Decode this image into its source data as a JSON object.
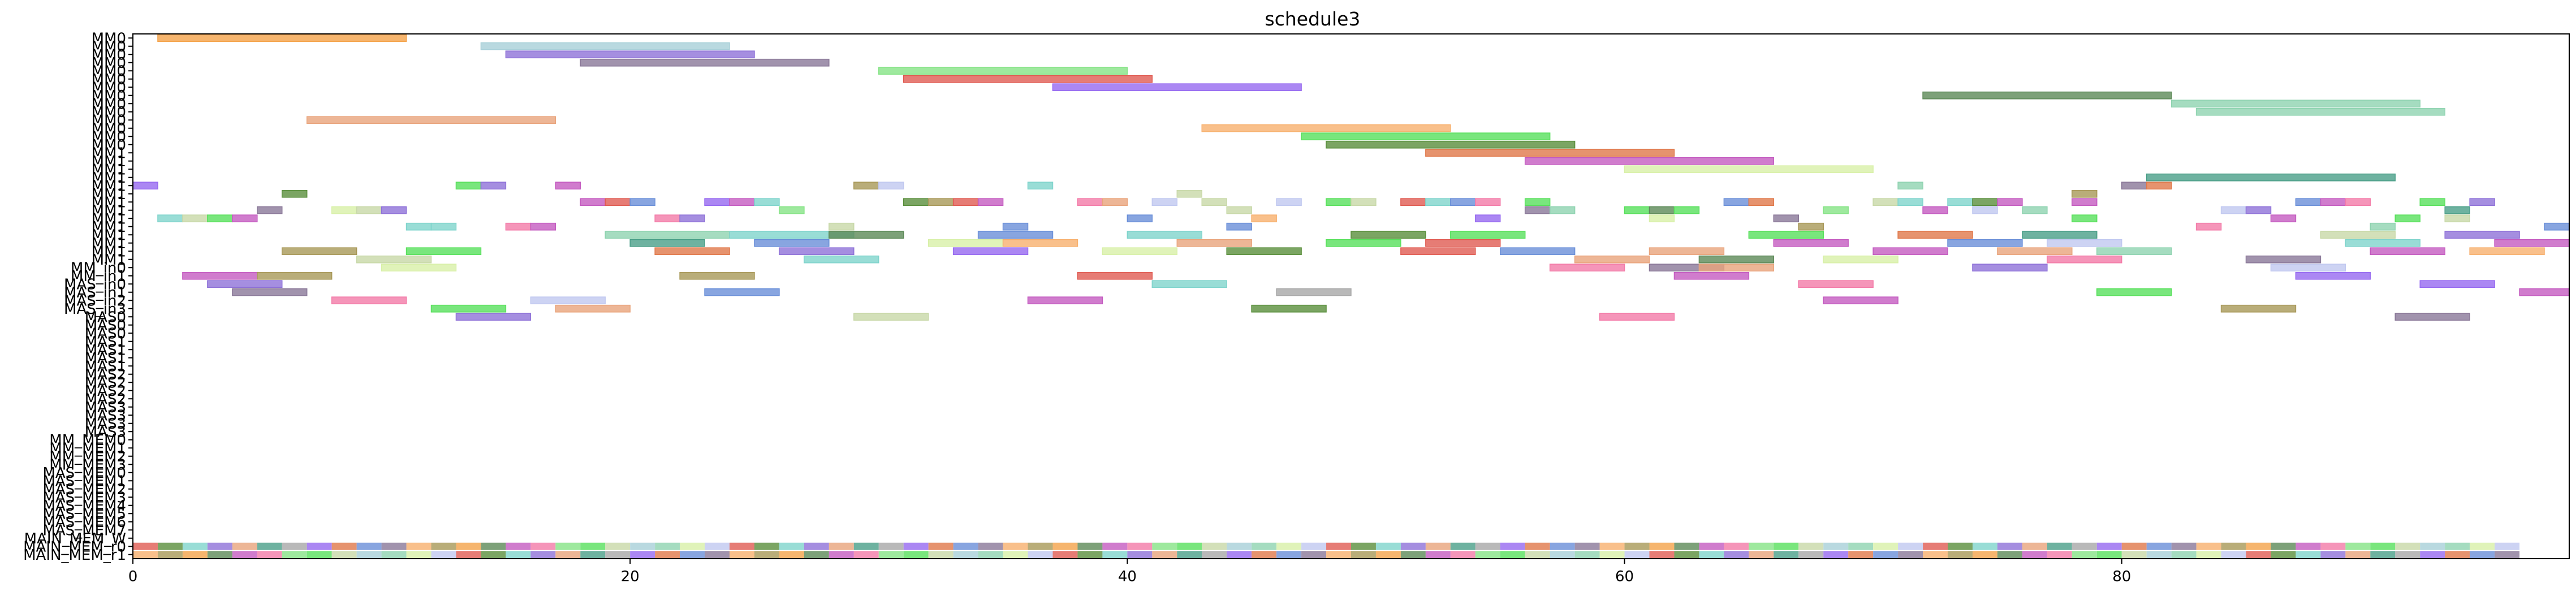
{
  "chart_data": {
    "type": "gantt",
    "title": "schedule3",
    "xlim": [
      0,
      98
    ],
    "x_ticks": [
      "0",
      "20",
      "40",
      "60",
      "80"
    ],
    "x_tick_values": [
      0,
      20,
      40,
      60,
      80
    ],
    "rows": [
      "MM0",
      "MM0",
      "MM0",
      "MM0",
      "MM0",
      "MM0",
      "MM0",
      "MM0",
      "MM0",
      "MM0",
      "MM0",
      "MM0",
      "MM0",
      "MM0",
      "MM1",
      "MM1",
      "MM1",
      "MM1",
      "MM1",
      "MM1",
      "MM1",
      "MM1",
      "MM1",
      "MM1",
      "MM1",
      "MM1",
      "MM1",
      "MM1",
      "MM_in0",
      "MM_in1",
      "MAS_in0",
      "MAS_in1",
      "MAS_in2",
      "MAS_in3",
      "MAS0",
      "MAS0",
      "MAS0",
      "MAS1",
      "MAS1",
      "MAS1",
      "MAS1",
      "MAS2",
      "MAS2",
      "MAS2",
      "MAS2",
      "MAS3",
      "MAS3",
      "MAS3",
      "MAS3",
      "MM_MEM0",
      "MM_MEM1",
      "MM_MEM2",
      "MM_MEM3",
      "MAS_MEM0",
      "MAS_MEM1",
      "MAS_MEM2",
      "MAS_MEM3",
      "MAS_MEM4",
      "MAS_MEM5",
      "MAS_MEM6",
      "MAS_MEM7",
      "MAIN_MEM_W",
      "MAIN_MEM_r0",
      "MAIN_MEM_r1"
    ],
    "palette": [
      "#f4a34a",
      "#a8d0d8",
      "#8f72d8",
      "#8a7898",
      "#86e386",
      "#e05b52",
      "#9669f0",
      "#5d8a58",
      "#8fd3b0",
      "#e9a47c",
      "#f7b06e",
      "#58e05c",
      "#5a8f3c",
      "#e0784a",
      "#c45bc0",
      "#d8f0a8",
      "#4a9f88",
      "#a89858",
      "#c8d8a8",
      "#7fd4cc",
      "#6a8fd8",
      "#f37ba8",
      "#c0c8f0",
      "#a8a8a8"
    ],
    "tasks": [
      {
        "row": 0,
        "start": 1,
        "end": 11,
        "c": 0
      },
      {
        "row": 1,
        "start": 14,
        "end": 24,
        "c": 1
      },
      {
        "row": 2,
        "start": 15,
        "end": 25,
        "c": 2
      },
      {
        "row": 3,
        "start": 18,
        "end": 28,
        "c": 3
      },
      {
        "row": 4,
        "start": 30,
        "end": 40,
        "c": 4
      },
      {
        "row": 5,
        "start": 31,
        "end": 41,
        "c": 5
      },
      {
        "row": 6,
        "start": 37,
        "end": 47,
        "c": 6
      },
      {
        "row": 7,
        "start": 72,
        "end": 82,
        "c": 7
      },
      {
        "row": 8,
        "start": 82,
        "end": 92,
        "c": 8
      },
      {
        "row": 9,
        "start": 83,
        "end": 93,
        "c": 8
      },
      {
        "row": 10,
        "start": 7,
        "end": 17,
        "c": 9
      },
      {
        "row": 11,
        "start": 43,
        "end": 53,
        "c": 10
      },
      {
        "row": 12,
        "start": 47,
        "end": 57,
        "c": 11
      },
      {
        "row": 13,
        "start": 48,
        "end": 58,
        "c": 12
      },
      {
        "row": 14,
        "start": 52,
        "end": 62,
        "c": 13
      },
      {
        "row": 15,
        "start": 56,
        "end": 66,
        "c": 14
      },
      {
        "row": 16,
        "start": 60,
        "end": 70,
        "c": 15
      },
      {
        "row": 17,
        "start": 81,
        "end": 91,
        "c": 16
      },
      {
        "row": 18,
        "start": 0,
        "end": 1,
        "c": 6
      },
      {
        "row": 18,
        "start": 13,
        "end": 14,
        "c": 11
      },
      {
        "row": 18,
        "start": 14,
        "end": 15,
        "c": 2
      },
      {
        "row": 18,
        "start": 17,
        "end": 18,
        "c": 14
      },
      {
        "row": 18,
        "start": 29,
        "end": 30,
        "c": 17
      },
      {
        "row": 18,
        "start": 30,
        "end": 31,
        "c": 22
      },
      {
        "row": 18,
        "start": 36,
        "end": 37,
        "c": 19
      },
      {
        "row": 18,
        "start": 71,
        "end": 72,
        "c": 8
      },
      {
        "row": 18,
        "start": 80,
        "end": 81,
        "c": 3
      },
      {
        "row": 18,
        "start": 81,
        "end": 82,
        "c": 13
      },
      {
        "row": 19,
        "start": 6,
        "end": 7,
        "c": 12
      },
      {
        "row": 19,
        "start": 42,
        "end": 43,
        "c": 18
      },
      {
        "row": 19,
        "start": 78,
        "end": 79,
        "c": 17
      },
      {
        "row": 20,
        "start": 18,
        "end": 19,
        "c": 14
      },
      {
        "row": 20,
        "start": 19,
        "end": 20,
        "c": 5
      },
      {
        "row": 20,
        "start": 20,
        "end": 21,
        "c": 20
      },
      {
        "row": 20,
        "start": 23,
        "end": 24,
        "c": 6
      },
      {
        "row": 20,
        "start": 24,
        "end": 25,
        "c": 14
      },
      {
        "row": 20,
        "start": 25,
        "end": 26,
        "c": 19
      },
      {
        "row": 20,
        "start": 31,
        "end": 32,
        "c": 12
      },
      {
        "row": 20,
        "start": 32,
        "end": 33,
        "c": 17
      },
      {
        "row": 20,
        "start": 33,
        "end": 34,
        "c": 5
      },
      {
        "row": 20,
        "start": 34,
        "end": 35,
        "c": 14
      },
      {
        "row": 20,
        "start": 38,
        "end": 39,
        "c": 21
      },
      {
        "row": 20,
        "start": 39,
        "end": 40,
        "c": 9
      },
      {
        "row": 20,
        "start": 41,
        "end": 42,
        "c": 22
      },
      {
        "row": 20,
        "start": 43,
        "end": 44,
        "c": 18
      },
      {
        "row": 20,
        "start": 46,
        "end": 47,
        "c": 22
      },
      {
        "row": 20,
        "start": 48,
        "end": 49,
        "c": 11
      },
      {
        "row": 20,
        "start": 49,
        "end": 50,
        "c": 18
      },
      {
        "row": 20,
        "start": 51,
        "end": 52,
        "c": 5
      },
      {
        "row": 20,
        "start": 52,
        "end": 53,
        "c": 19
      },
      {
        "row": 20,
        "start": 53,
        "end": 54,
        "c": 20
      },
      {
        "row": 20,
        "start": 54,
        "end": 55,
        "c": 21
      },
      {
        "row": 20,
        "start": 56,
        "end": 57,
        "c": 11
      },
      {
        "row": 20,
        "start": 64,
        "end": 65,
        "c": 20
      },
      {
        "row": 20,
        "start": 65,
        "end": 66,
        "c": 13
      },
      {
        "row": 20,
        "start": 70,
        "end": 71,
        "c": 18
      },
      {
        "row": 20,
        "start": 71,
        "end": 72,
        "c": 19
      },
      {
        "row": 20,
        "start": 73,
        "end": 74,
        "c": 19
      },
      {
        "row": 20,
        "start": 74,
        "end": 75,
        "c": 12
      },
      {
        "row": 20,
        "start": 75,
        "end": 76,
        "c": 14
      },
      {
        "row": 20,
        "start": 78,
        "end": 79,
        "c": 14
      },
      {
        "row": 20,
        "start": 87,
        "end": 88,
        "c": 20
      },
      {
        "row": 20,
        "start": 88,
        "end": 89,
        "c": 14
      },
      {
        "row": 20,
        "start": 89,
        "end": 90,
        "c": 21
      },
      {
        "row": 20,
        "start": 92,
        "end": 93,
        "c": 11
      },
      {
        "row": 20,
        "start": 94,
        "end": 95,
        "c": 2
      },
      {
        "row": 21,
        "start": 5,
        "end": 6,
        "c": 3
      },
      {
        "row": 21,
        "start": 8,
        "end": 9,
        "c": 15
      },
      {
        "row": 21,
        "start": 9,
        "end": 10,
        "c": 18
      },
      {
        "row": 21,
        "start": 10,
        "end": 11,
        "c": 2
      },
      {
        "row": 21,
        "start": 26,
        "end": 27,
        "c": 4
      },
      {
        "row": 21,
        "start": 44,
        "end": 45,
        "c": 18
      },
      {
        "row": 21,
        "start": 56,
        "end": 57,
        "c": 3
      },
      {
        "row": 21,
        "start": 57,
        "end": 58,
        "c": 8
      },
      {
        "row": 21,
        "start": 60,
        "end": 61,
        "c": 11
      },
      {
        "row": 21,
        "start": 61,
        "end": 62,
        "c": 7
      },
      {
        "row": 21,
        "start": 62,
        "end": 63,
        "c": 11
      },
      {
        "row": 21,
        "start": 68,
        "end": 69,
        "c": 4
      },
      {
        "row": 21,
        "start": 72,
        "end": 73,
        "c": 14
      },
      {
        "row": 21,
        "start": 74,
        "end": 75,
        "c": 22
      },
      {
        "row": 21,
        "start": 76,
        "end": 77,
        "c": 8
      },
      {
        "row": 21,
        "start": 84,
        "end": 85,
        "c": 22
      },
      {
        "row": 21,
        "start": 85,
        "end": 86,
        "c": 2
      },
      {
        "row": 21,
        "start": 93,
        "end": 94,
        "c": 16
      },
      {
        "row": 22,
        "start": 1,
        "end": 2,
        "c": 19
      },
      {
        "row": 22,
        "start": 2,
        "end": 3,
        "c": 18
      },
      {
        "row": 22,
        "start": 3,
        "end": 4,
        "c": 11
      },
      {
        "row": 22,
        "start": 4,
        "end": 5,
        "c": 14
      },
      {
        "row": 22,
        "start": 21,
        "end": 22,
        "c": 21
      },
      {
        "row": 22,
        "start": 22,
        "end": 23,
        "c": 2
      },
      {
        "row": 22,
        "start": 40,
        "end": 41,
        "c": 20
      },
      {
        "row": 22,
        "start": 45,
        "end": 46,
        "c": 10
      },
      {
        "row": 22,
        "start": 54,
        "end": 55,
        "c": 6
      },
      {
        "row": 22,
        "start": 61,
        "end": 62,
        "c": 15
      },
      {
        "row": 22,
        "start": 66,
        "end": 67,
        "c": 3
      },
      {
        "row": 22,
        "start": 78,
        "end": 79,
        "c": 11
      },
      {
        "row": 22,
        "start": 86,
        "end": 87,
        "c": 14
      },
      {
        "row": 22,
        "start": 91,
        "end": 92,
        "c": 11
      },
      {
        "row": 22,
        "start": 93,
        "end": 94,
        "c": 18
      },
      {
        "row": 23,
        "start": 11,
        "end": 12,
        "c": 19
      },
      {
        "row": 23,
        "start": 12,
        "end": 13,
        "c": 19
      },
      {
        "row": 23,
        "start": 15,
        "end": 16,
        "c": 21
      },
      {
        "row": 23,
        "start": 16,
        "end": 17,
        "c": 14
      },
      {
        "row": 23,
        "start": 28,
        "end": 29,
        "c": 18
      },
      {
        "row": 23,
        "start": 35,
        "end": 36,
        "c": 20
      },
      {
        "row": 23,
        "start": 44,
        "end": 45,
        "c": 20
      },
      {
        "row": 23,
        "start": 67,
        "end": 68,
        "c": 17
      },
      {
        "row": 23,
        "start": 83,
        "end": 84,
        "c": 21
      },
      {
        "row": 23,
        "start": 90,
        "end": 91,
        "c": 8
      },
      {
        "row": 23,
        "start": 97,
        "end": 98,
        "c": 20
      },
      {
        "row": 24,
        "start": 19,
        "end": 24,
        "c": 8
      },
      {
        "row": 24,
        "start": 24,
        "end": 29,
        "c": 19
      },
      {
        "row": 24,
        "start": 28,
        "end": 31,
        "c": 7
      },
      {
        "row": 24,
        "start": 34,
        "end": 37,
        "c": 20
      },
      {
        "row": 24,
        "start": 40,
        "end": 43,
        "c": 19
      },
      {
        "row": 24,
        "start": 49,
        "end": 52,
        "c": 12
      },
      {
        "row": 24,
        "start": 53,
        "end": 56,
        "c": 11
      },
      {
        "row": 24,
        "start": 65,
        "end": 68,
        "c": 11
      },
      {
        "row": 24,
        "start": 71,
        "end": 74,
        "c": 13
      },
      {
        "row": 24,
        "start": 76,
        "end": 79,
        "c": 16
      },
      {
        "row": 24,
        "start": 88,
        "end": 91,
        "c": 18
      },
      {
        "row": 24,
        "start": 93,
        "end": 96,
        "c": 2
      },
      {
        "row": 25,
        "start": 20,
        "end": 23,
        "c": 16
      },
      {
        "row": 25,
        "start": 25,
        "end": 28,
        "c": 20
      },
      {
        "row": 25,
        "start": 32,
        "end": 35,
        "c": 15
      },
      {
        "row": 25,
        "start": 35,
        "end": 38,
        "c": 10
      },
      {
        "row": 25,
        "start": 42,
        "end": 45,
        "c": 9
      },
      {
        "row": 25,
        "start": 48,
        "end": 51,
        "c": 11
      },
      {
        "row": 25,
        "start": 52,
        "end": 55,
        "c": 5
      },
      {
        "row": 25,
        "start": 66,
        "end": 69,
        "c": 14
      },
      {
        "row": 25,
        "start": 73,
        "end": 76,
        "c": 20
      },
      {
        "row": 25,
        "start": 77,
        "end": 80,
        "c": 22
      },
      {
        "row": 25,
        "start": 89,
        "end": 92,
        "c": 19
      },
      {
        "row": 25,
        "start": 95,
        "end": 98,
        "c": 14
      },
      {
        "row": 26,
        "start": 6,
        "end": 9,
        "c": 17
      },
      {
        "row": 26,
        "start": 11,
        "end": 14,
        "c": 11
      },
      {
        "row": 26,
        "start": 21,
        "end": 24,
        "c": 13
      },
      {
        "row": 26,
        "start": 26,
        "end": 29,
        "c": 2
      },
      {
        "row": 26,
        "start": 33,
        "end": 36,
        "c": 6
      },
      {
        "row": 26,
        "start": 39,
        "end": 42,
        "c": 15
      },
      {
        "row": 26,
        "start": 44,
        "end": 47,
        "c": 12
      },
      {
        "row": 26,
        "start": 51,
        "end": 54,
        "c": 5
      },
      {
        "row": 26,
        "start": 55,
        "end": 58,
        "c": 20
      },
      {
        "row": 26,
        "start": 61,
        "end": 64,
        "c": 9
      },
      {
        "row": 26,
        "start": 70,
        "end": 73,
        "c": 14
      },
      {
        "row": 26,
        "start": 75,
        "end": 78,
        "c": 9
      },
      {
        "row": 26,
        "start": 79,
        "end": 82,
        "c": 8
      },
      {
        "row": 26,
        "start": 90,
        "end": 93,
        "c": 14
      },
      {
        "row": 26,
        "start": 94,
        "end": 97,
        "c": 10
      },
      {
        "row": 27,
        "start": 9,
        "end": 12,
        "c": 18
      },
      {
        "row": 27,
        "start": 27,
        "end": 30,
        "c": 19
      },
      {
        "row": 27,
        "start": 58,
        "end": 61,
        "c": 9
      },
      {
        "row": 27,
        "start": 63,
        "end": 66,
        "c": 7
      },
      {
        "row": 27,
        "start": 68,
        "end": 71,
        "c": 15
      },
      {
        "row": 27,
        "start": 77,
        "end": 80,
        "c": 21
      },
      {
        "row": 27,
        "start": 85,
        "end": 88,
        "c": 3
      },
      {
        "row": 28,
        "start": 10,
        "end": 13,
        "c": 15
      },
      {
        "row": 28,
        "start": 57,
        "end": 60,
        "c": 21
      },
      {
        "row": 28,
        "start": 61,
        "end": 64,
        "c": 3
      },
      {
        "row": 28,
        "start": 63,
        "end": 66,
        "c": 9
      },
      {
        "row": 28,
        "start": 74,
        "end": 77,
        "c": 2
      },
      {
        "row": 28,
        "start": 86,
        "end": 89,
        "c": 22
      },
      {
        "row": 29,
        "start": 2,
        "end": 5,
        "c": 14
      },
      {
        "row": 29,
        "start": 5,
        "end": 8,
        "c": 17
      },
      {
        "row": 29,
        "start": 22,
        "end": 25,
        "c": 17
      },
      {
        "row": 29,
        "start": 38,
        "end": 41,
        "c": 5
      },
      {
        "row": 29,
        "start": 62,
        "end": 65,
        "c": 14
      },
      {
        "row": 29,
        "start": 87,
        "end": 90,
        "c": 6
      },
      {
        "row": 30,
        "start": 3,
        "end": 6,
        "c": 2
      },
      {
        "row": 30,
        "start": 41,
        "end": 44,
        "c": 19
      },
      {
        "row": 30,
        "start": 67,
        "end": 70,
        "c": 21
      },
      {
        "row": 30,
        "start": 92,
        "end": 95,
        "c": 6
      },
      {
        "row": 31,
        "start": 4,
        "end": 7,
        "c": 3
      },
      {
        "row": 31,
        "start": 23,
        "end": 26,
        "c": 20
      },
      {
        "row": 31,
        "start": 46,
        "end": 49,
        "c": 23
      },
      {
        "row": 31,
        "start": 79,
        "end": 82,
        "c": 11
      },
      {
        "row": 31,
        "start": 96,
        "end": 98,
        "c": 14
      },
      {
        "row": 32,
        "start": 8,
        "end": 11,
        "c": 21
      },
      {
        "row": 32,
        "start": 16,
        "end": 19,
        "c": 22
      },
      {
        "row": 32,
        "start": 36,
        "end": 39,
        "c": 14
      },
      {
        "row": 32,
        "start": 68,
        "end": 71,
        "c": 14
      },
      {
        "row": 33,
        "start": 12,
        "end": 15,
        "c": 11
      },
      {
        "row": 33,
        "start": 17,
        "end": 20,
        "c": 9
      },
      {
        "row": 33,
        "start": 45,
        "end": 48,
        "c": 12
      },
      {
        "row": 33,
        "start": 84,
        "end": 87,
        "c": 17
      },
      {
        "row": 34,
        "start": 13,
        "end": 16,
        "c": 2
      },
      {
        "row": 34,
        "start": 29,
        "end": 32,
        "c": 18
      },
      {
        "row": 34,
        "start": 59,
        "end": 62,
        "c": 21
      },
      {
        "row": 34,
        "start": 91,
        "end": 94,
        "c": 3
      }
    ]
  }
}
